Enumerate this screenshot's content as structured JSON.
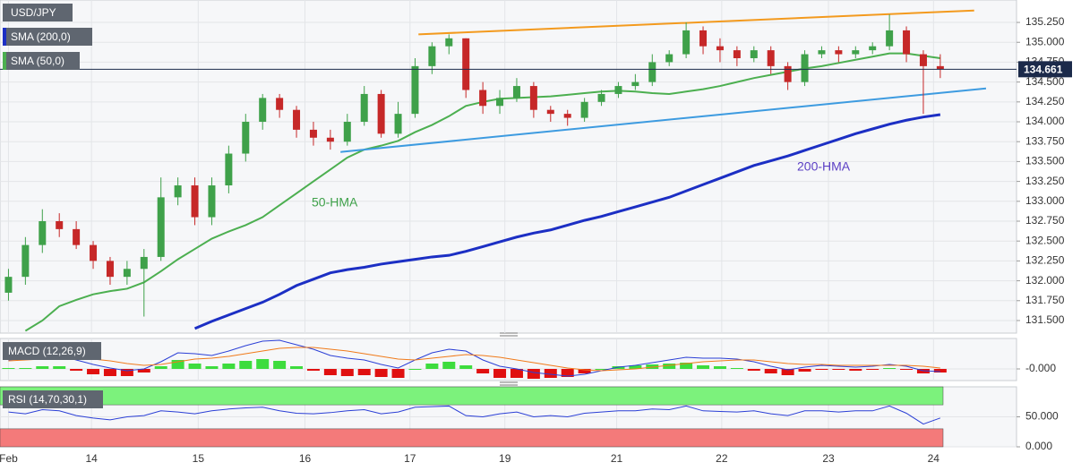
{
  "chart_data": [
    {
      "type": "candlestick",
      "title": "USD/JPY",
      "x": [
        0,
        1,
        2,
        3,
        4,
        5,
        6,
        7,
        8,
        9,
        10,
        11,
        12,
        13,
        14,
        15,
        16,
        17,
        18,
        19,
        20,
        21,
        22,
        23,
        24,
        25,
        26,
        27,
        28,
        29,
        30,
        31,
        32,
        33,
        34,
        35,
        36,
        37,
        38,
        39,
        40,
        41,
        42,
        43,
        44,
        45,
        46,
        47,
        48,
        49,
        50,
        51,
        52,
        53,
        54,
        55
      ],
      "open": [
        131.85,
        132.05,
        132.45,
        132.75,
        132.65,
        132.45,
        132.25,
        132.05,
        132.15,
        132.3,
        133.05,
        133.2,
        132.8,
        133.2,
        133.6,
        134.0,
        134.3,
        134.15,
        133.9,
        133.8,
        133.75,
        134.0,
        134.35,
        133.85,
        134.1,
        134.7,
        134.95,
        135.05,
        134.4,
        134.2,
        134.3,
        134.45,
        134.15,
        134.1,
        134.05,
        134.25,
        134.35,
        134.45,
        134.5,
        134.75,
        134.85,
        135.15,
        134.95,
        134.9,
        134.8,
        134.9,
        134.7,
        134.5,
        134.85,
        134.9,
        134.85,
        134.9,
        134.95,
        135.15,
        134.85,
        134.7
      ],
      "high": [
        132.15,
        132.55,
        132.9,
        132.85,
        132.75,
        132.5,
        132.3,
        132.25,
        132.4,
        133.3,
        133.3,
        133.3,
        133.3,
        133.7,
        134.1,
        134.35,
        134.35,
        134.2,
        134.0,
        133.9,
        134.1,
        134.45,
        134.4,
        134.25,
        134.8,
        135.0,
        135.1,
        135.05,
        134.5,
        134.4,
        134.55,
        134.5,
        134.2,
        134.15,
        134.3,
        134.4,
        134.5,
        134.6,
        134.85,
        134.9,
        135.25,
        135.2,
        135.05,
        134.95,
        134.95,
        134.95,
        134.75,
        134.9,
        134.95,
        134.95,
        134.95,
        135.0,
        135.35,
        135.2,
        134.9,
        134.85
      ],
      "low": [
        131.75,
        131.95,
        132.35,
        132.55,
        132.4,
        132.15,
        131.95,
        131.95,
        131.55,
        132.25,
        132.95,
        132.7,
        132.7,
        133.1,
        133.5,
        133.9,
        134.05,
        133.8,
        133.7,
        133.65,
        133.7,
        133.95,
        133.8,
        133.8,
        134.05,
        134.6,
        134.85,
        134.3,
        134.1,
        134.1,
        134.25,
        134.05,
        134.0,
        133.95,
        134.0,
        134.2,
        134.3,
        134.4,
        134.45,
        134.7,
        134.8,
        134.85,
        134.75,
        134.7,
        134.75,
        134.6,
        134.4,
        134.45,
        134.8,
        134.75,
        134.8,
        134.85,
        134.9,
        134.75,
        134.1,
        134.55
      ],
      "close": [
        132.05,
        132.45,
        132.75,
        132.65,
        132.45,
        132.25,
        132.05,
        132.15,
        132.3,
        133.05,
        133.2,
        132.8,
        133.2,
        133.6,
        134.0,
        134.3,
        134.15,
        133.9,
        133.8,
        133.75,
        134.0,
        134.35,
        133.85,
        134.1,
        134.7,
        134.95,
        135.05,
        134.4,
        134.2,
        134.3,
        134.45,
        134.15,
        134.1,
        134.05,
        134.25,
        134.35,
        134.45,
        134.5,
        134.75,
        134.85,
        135.15,
        134.95,
        134.9,
        134.8,
        134.9,
        134.7,
        134.5,
        134.85,
        134.9,
        134.85,
        134.9,
        134.95,
        135.15,
        134.85,
        134.7,
        134.66
      ],
      "up_color": "#3fa14a",
      "down_color": "#c62828",
      "series": [
        {
          "name": "SMA (200,0)",
          "color": "#1c2fc4",
          "values": [
            null,
            null,
            null,
            null,
            null,
            null,
            null,
            null,
            null,
            null,
            null,
            131.4,
            131.49,
            131.57,
            131.65,
            131.73,
            131.83,
            131.94,
            132.02,
            132.1,
            132.14,
            132.17,
            132.21,
            132.24,
            132.27,
            132.3,
            132.32,
            132.37,
            132.43,
            132.49,
            132.55,
            132.6,
            132.64,
            132.7,
            132.76,
            132.81,
            132.87,
            132.93,
            132.99,
            133.05,
            133.13,
            133.21,
            133.29,
            133.37,
            133.45,
            133.51,
            133.57,
            133.64,
            133.71,
            133.78,
            133.85,
            133.91,
            133.97,
            134.02,
            134.06,
            134.09
          ]
        },
        {
          "name": "SMA (50,0)",
          "color": "#4caf50",
          "values": [
            null,
            131.37,
            131.5,
            131.68,
            131.76,
            131.83,
            131.87,
            131.9,
            131.98,
            132.12,
            132.27,
            132.4,
            132.53,
            132.62,
            132.7,
            132.8,
            132.95,
            133.1,
            133.25,
            133.4,
            133.55,
            133.65,
            133.7,
            133.76,
            133.87,
            133.96,
            134.07,
            134.2,
            134.25,
            134.29,
            134.3,
            134.31,
            134.32,
            134.34,
            134.36,
            134.38,
            134.39,
            134.38,
            134.36,
            134.35,
            134.38,
            134.41,
            134.45,
            134.5,
            134.55,
            134.59,
            134.63,
            134.67,
            134.7,
            134.74,
            134.78,
            134.82,
            134.86,
            134.86,
            134.83,
            134.8
          ]
        }
      ],
      "trendlines": [
        {
          "color": "#f39a1e",
          "x": [
            24.2,
            57.0
          ],
          "values": [
            135.1,
            135.4
          ]
        },
        {
          "color": "#3d9be0",
          "x": [
            19.6,
            57.7
          ],
          "values": [
            133.62,
            134.42
          ]
        }
      ],
      "annotations": [
        {
          "text": "50-HMA",
          "color": "#3fa14a"
        },
        {
          "text": "200-HMA",
          "color": "#5b3fc4"
        }
      ],
      "last": 134.661,
      "xlim": [
        -0.5,
        59.5
      ],
      "ylim": [
        131.342,
        135.532
      ],
      "yticks": [
        {
          "value": 135.25,
          "label": "135.250"
        },
        {
          "value": 135.0,
          "label": "135.000"
        },
        {
          "value": 134.75,
          "label": "134.750"
        },
        {
          "value": 134.5,
          "label": "134.500"
        },
        {
          "value": 134.25,
          "label": "134.250"
        },
        {
          "value": 134.0,
          "label": "134.000"
        },
        {
          "value": 133.75,
          "label": "133.750"
        },
        {
          "value": 133.5,
          "label": "133.500"
        },
        {
          "value": 133.25,
          "label": "133.250"
        },
        {
          "value": 133.0,
          "label": "133.000"
        },
        {
          "value": 132.75,
          "label": "132.750"
        },
        {
          "value": 132.5,
          "label": "132.500"
        },
        {
          "value": 132.25,
          "label": "132.250"
        },
        {
          "value": 132.0,
          "label": "132.000"
        },
        {
          "value": 131.75,
          "label": "131.750"
        },
        {
          "value": 131.5,
          "label": "131.500"
        }
      ],
      "grid": true
    },
    {
      "type": "macd",
      "title": "MACD (12,26,9)",
      "x": [
        0,
        1,
        2,
        3,
        4,
        5,
        6,
        7,
        8,
        9,
        10,
        11,
        12,
        13,
        14,
        15,
        16,
        17,
        18,
        19,
        20,
        21,
        22,
        23,
        24,
        25,
        26,
        27,
        28,
        29,
        30,
        31,
        32,
        33,
        34,
        35,
        36,
        37,
        38,
        39,
        40,
        41,
        42,
        43,
        44,
        45,
        46,
        47,
        48,
        49,
        50,
        51,
        52,
        53,
        54,
        55
      ],
      "histogram": [
        0.01,
        0.01,
        0.03,
        0.03,
        -0.02,
        -0.06,
        -0.08,
        -0.08,
        -0.04,
        0.03,
        0.1,
        0.06,
        0.03,
        0.06,
        0.09,
        0.11,
        0.09,
        0.03,
        -0.02,
        -0.07,
        -0.08,
        -0.07,
        -0.09,
        -0.1,
        0.0,
        0.06,
        0.08,
        0.04,
        -0.05,
        -0.1,
        -0.1,
        -0.11,
        -0.1,
        -0.09,
        -0.05,
        0.0,
        0.03,
        0.04,
        0.05,
        0.06,
        0.07,
        0.04,
        0.03,
        0.01,
        -0.02,
        -0.05,
        -0.07,
        -0.03,
        -0.01,
        -0.01,
        -0.02,
        -0.01,
        0.01,
        -0.01,
        -0.05,
        -0.04
      ],
      "up_color": "#3ddc3d",
      "down_color": "#e01010",
      "series": [
        {
          "color": "#2b3fd6",
          "values": [
            0.1,
            0.11,
            0.14,
            0.15,
            0.1,
            0.05,
            0.01,
            -0.02,
            0.0,
            0.08,
            0.18,
            0.17,
            0.15,
            0.2,
            0.26,
            0.31,
            0.32,
            0.27,
            0.22,
            0.15,
            0.12,
            0.1,
            0.05,
            0.01,
            0.1,
            0.18,
            0.22,
            0.2,
            0.1,
            0.03,
            0.0,
            -0.04,
            -0.06,
            -0.08,
            -0.06,
            -0.02,
            0.02,
            0.04,
            0.07,
            0.1,
            0.13,
            0.12,
            0.12,
            0.11,
            0.08,
            0.03,
            -0.01,
            0.02,
            0.04,
            0.03,
            0.02,
            0.03,
            0.05,
            0.03,
            -0.02,
            -0.03
          ]
        },
        {
          "color": "#f07a1a",
          "values": [
            0.09,
            0.1,
            0.11,
            0.12,
            0.12,
            0.11,
            0.09,
            0.06,
            0.04,
            0.05,
            0.08,
            0.11,
            0.12,
            0.14,
            0.17,
            0.2,
            0.23,
            0.24,
            0.24,
            0.22,
            0.2,
            0.17,
            0.14,
            0.11,
            0.1,
            0.12,
            0.14,
            0.16,
            0.15,
            0.13,
            0.1,
            0.07,
            0.04,
            0.01,
            -0.01,
            -0.02,
            -0.01,
            0.0,
            0.02,
            0.04,
            0.06,
            0.08,
            0.09,
            0.1,
            0.1,
            0.08,
            0.06,
            0.05,
            0.05,
            0.04,
            0.04,
            0.04,
            0.04,
            0.04,
            0.03,
            0.01
          ]
        }
      ],
      "xlim": [
        -0.5,
        59.5
      ],
      "ylim": [
        -0.13,
        0.34
      ],
      "yticks": [
        {
          "value": 0,
          "label": "-0.000"
        }
      ]
    },
    {
      "type": "line",
      "title": "RSI (14,70,30,1)",
      "x": [
        0,
        1,
        2,
        3,
        4,
        5,
        6,
        7,
        8,
        9,
        10,
        11,
        12,
        13,
        14,
        15,
        16,
        17,
        18,
        19,
        20,
        21,
        22,
        23,
        24,
        25,
        26,
        27,
        28,
        29,
        30,
        31,
        32,
        33,
        34,
        35,
        36,
        37,
        38,
        39,
        40,
        41,
        42,
        43,
        44,
        45,
        46,
        47,
        48,
        49,
        50,
        51,
        52,
        53,
        54,
        55
      ],
      "series": [
        {
          "color": "#2b3fd6",
          "values": [
            58,
            55,
            62,
            60,
            52,
            48,
            45,
            50,
            52,
            60,
            58,
            55,
            60,
            63,
            65,
            66,
            60,
            56,
            55,
            57,
            60,
            62,
            55,
            58,
            66,
            67,
            68,
            52,
            50,
            55,
            58,
            50,
            52,
            50,
            56,
            58,
            60,
            60,
            63,
            62,
            68,
            60,
            59,
            58,
            60,
            55,
            52,
            60,
            60,
            58,
            60,
            60,
            68,
            56,
            38,
            48
          ]
        }
      ],
      "bands": [
        {
          "from": 70,
          "to": 100,
          "color": "#7cf27c"
        },
        {
          "from": 0,
          "to": 30,
          "color": "#f47a7a"
        }
      ],
      "xlim": [
        -0.5,
        59.5
      ],
      "ylim": [
        0,
        100
      ],
      "yticks": [
        {
          "value": 50,
          "label": "50.000"
        },
        {
          "value": 0,
          "label": "0.000"
        }
      ],
      "xticks": [
        {
          "value": 0,
          "label": "Feb"
        },
        {
          "value": 4.9,
          "label": "14"
        },
        {
          "value": 11.2,
          "label": "15"
        },
        {
          "value": 17.5,
          "label": "16"
        },
        {
          "value": 23.7,
          "label": "17"
        },
        {
          "value": 29.3,
          "label": "19"
        },
        {
          "value": 35.9,
          "label": "21"
        },
        {
          "value": 42.1,
          "label": "22"
        },
        {
          "value": 48.4,
          "label": "23"
        },
        {
          "value": 54.6,
          "label": "24"
        }
      ]
    }
  ]
}
